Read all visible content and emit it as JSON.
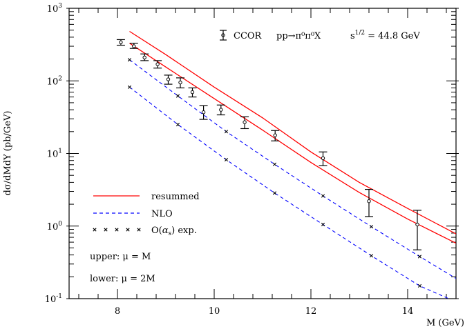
{
  "chart_data": {
    "type": "line",
    "title": "",
    "annotation": {
      "experiment": "CCOR",
      "process": "pp→π⁰π⁰X",
      "energy_label": "s",
      "energy_exponent": "1/2",
      "energy_value": "= 44.8 GeV"
    },
    "xlabel": "M (GeV)",
    "ylabel": "dσ/dMdY (pb/GeV)",
    "xlim": [
      7,
      15
    ],
    "ylim": [
      0.1,
      1000
    ],
    "yscale": "log",
    "x_ticks": [
      "8",
      "10",
      "12",
      "14"
    ],
    "y_ticks": [
      {
        "base": "10",
        "exp": "-1"
      },
      {
        "base": "10",
        "exp": "0"
      },
      {
        "base": "10",
        "exp": "1"
      },
      {
        "base": "10",
        "exp": "2"
      },
      {
        "base": "10",
        "exp": "3"
      }
    ],
    "grid": false,
    "legend_placement": "bottom-left",
    "legend": {
      "resummed": "resummed",
      "nlo": "NLO",
      "expansion_prefix": "O(",
      "expansion_alpha": "α",
      "expansion_sub": "s",
      "expansion_suffix": ") exp.",
      "upper_note": "upper: μ = M",
      "lower_note": "lower: μ = 2M"
    },
    "colors": {
      "resummed": "#ff0000",
      "nlo": "#0000ff",
      "data": "#000000"
    },
    "data_points": {
      "name": "CCOR",
      "x": [
        8.07,
        8.34,
        8.56,
        8.83,
        9.05,
        9.3,
        9.55,
        9.78,
        10.14,
        10.63,
        11.26,
        12.25,
        13.2,
        14.2
      ],
      "y": [
        340,
        300,
        210,
        170,
        105,
        95,
        70,
        37,
        40,
        27,
        17.8,
        8.6,
        2.2,
        1.05
      ],
      "y_low": [
        310,
        280,
        190,
        150,
        90,
        80,
        60,
        29.5,
        34,
        22,
        14.9,
        6.8,
        1.35,
        0.47
      ],
      "y_high": [
        370,
        330,
        235,
        190,
        120,
        110,
        80,
        45.6,
        46.5,
        32,
        20.7,
        10.5,
        3.2,
        1.65
      ]
    },
    "series": [
      {
        "name": "resummed",
        "scale": "upper",
        "style": "solid",
        "x": [
          8.25,
          9,
          10,
          11,
          12,
          13,
          14,
          15
        ],
        "y": [
          480,
          230,
          82,
          31,
          10.5,
          4.0,
          1.75,
          0.78
        ]
      },
      {
        "name": "resummed",
        "scale": "lower",
        "style": "solid",
        "x": [
          8.25,
          9,
          10,
          11,
          12,
          13,
          14,
          15
        ],
        "y": [
          330,
          155,
          57,
          21,
          7.5,
          2.9,
          1.25,
          0.58
        ]
      },
      {
        "name": "NLO",
        "scale": "upper",
        "style": "dashed",
        "x": [
          8.25,
          9.25,
          10.25,
          11.25,
          12.25,
          13.25,
          14.25,
          15
        ],
        "y": [
          195,
          62,
          20,
          7.1,
          2.6,
          0.98,
          0.38,
          0.19
        ]
      },
      {
        "name": "NLO",
        "scale": "lower",
        "style": "dashed",
        "x": [
          8.25,
          9.25,
          10.25,
          11.25,
          12.25,
          13.25,
          14.25,
          14.85
        ],
        "y": [
          82,
          25,
          8.2,
          2.85,
          1.05,
          0.39,
          0.15,
          0.1
        ]
      },
      {
        "name": "O(αs) exp.",
        "scale": "upper",
        "style": "markers",
        "x": [
          8.25,
          9.25,
          10.25,
          11.25,
          12.25,
          13.25,
          14.25
        ],
        "y": [
          195,
          62,
          20,
          7.1,
          2.6,
          0.98,
          0.38
        ]
      },
      {
        "name": "O(αs) exp.",
        "scale": "lower",
        "style": "markers",
        "x": [
          8.25,
          9.25,
          10.25,
          11.25,
          12.25,
          13.25,
          14.25
        ],
        "y": [
          82,
          25,
          8.2,
          2.85,
          1.05,
          0.39,
          0.15
        ]
      }
    ]
  }
}
